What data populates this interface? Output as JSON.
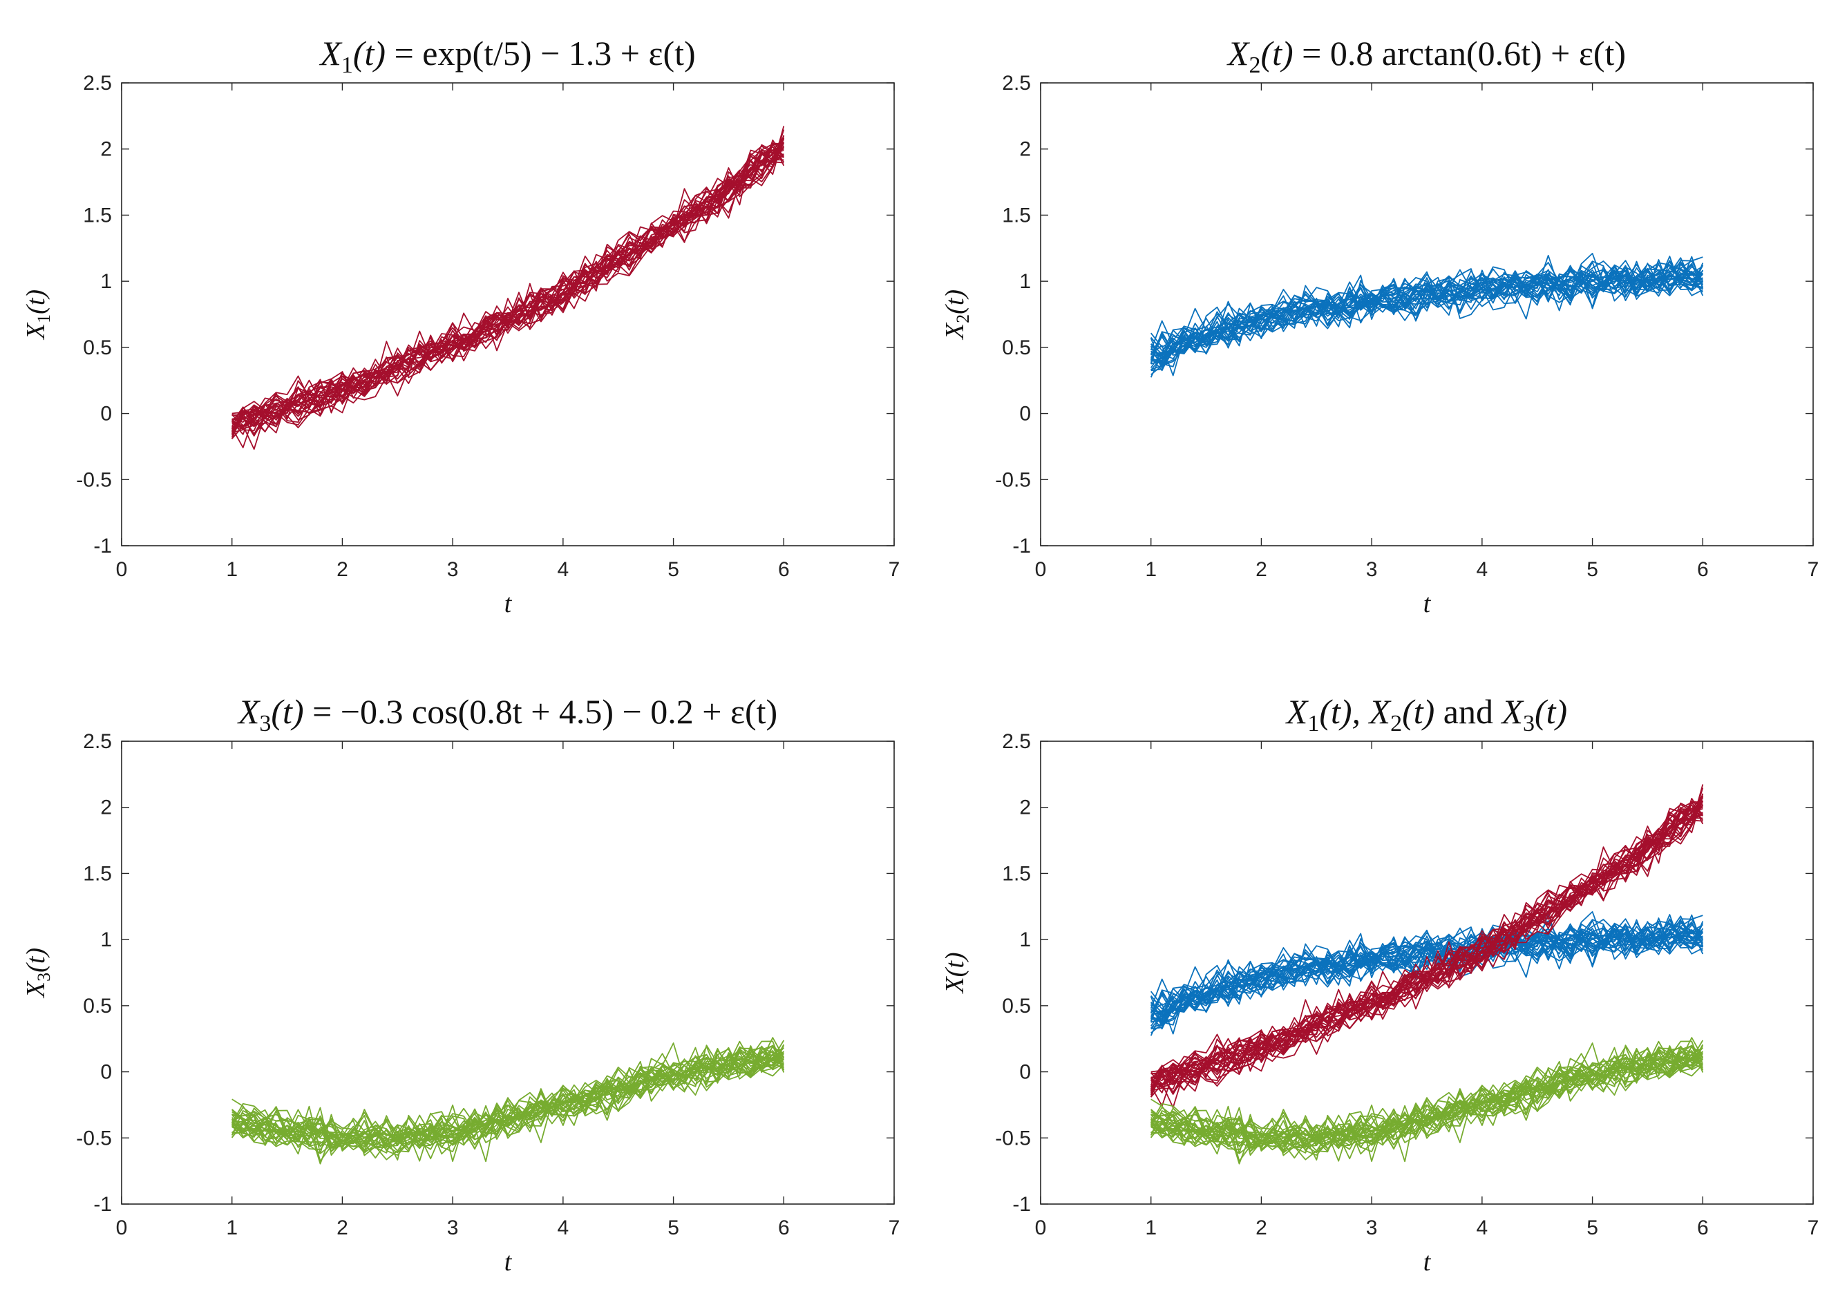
{
  "colors": {
    "X1": "#a50f2d",
    "X2": "#0b72bd",
    "X3": "#77ac30",
    "axes": "#262626",
    "background": "#ffffff"
  },
  "curves": {
    "samples": 30,
    "t_start": 1,
    "t_end": 6,
    "n_points": 51,
    "noise_sd": 0.07
  },
  "chart_data": [
    {
      "type": "line",
      "id": "X1",
      "title": "X1(t) = exp(t/5) − 1.3 + ε(t)",
      "title_runs": [
        {
          "text": "X",
          "it": true
        },
        {
          "text": "1",
          "sub": true
        },
        {
          "text": "(t)",
          "it": true
        },
        {
          "text": " = exp(t/5) − 1.3 + ε(t)",
          "it": false
        }
      ],
      "xlabel": "t",
      "ylabel": "X1(t)",
      "ylabel_runs": [
        {
          "text": "X",
          "it": true
        },
        {
          "text": "1",
          "sub": true
        },
        {
          "text": "(t)",
          "it": true
        }
      ],
      "xlim": [
        0,
        7
      ],
      "ylim": [
        -1,
        2.5
      ],
      "xticks": [
        "0",
        "1",
        "2",
        "3",
        "4",
        "5",
        "6",
        "7"
      ],
      "yticks": [
        "-1",
        "-0.5",
        "0",
        "0.5",
        "1",
        "1.5",
        "2",
        "2.5"
      ],
      "series": [
        {
          "name": "X1",
          "func": "exp"
        }
      ]
    },
    {
      "type": "line",
      "id": "X2",
      "title": "X2(t) = 0.8 arctan(0.6t) + ε(t)",
      "title_runs": [
        {
          "text": "X",
          "it": true
        },
        {
          "text": "2",
          "sub": true
        },
        {
          "text": "(t)",
          "it": true
        },
        {
          "text": " = 0.8 arctan(0.6t) + ε(t)",
          "it": false
        }
      ],
      "xlabel": "t",
      "ylabel": "X2(t)",
      "ylabel_runs": [
        {
          "text": "X",
          "it": true
        },
        {
          "text": "2",
          "sub": true
        },
        {
          "text": "(t)",
          "it": true
        }
      ],
      "xlim": [
        0,
        7
      ],
      "ylim": [
        -1,
        2.5
      ],
      "xticks": [
        "0",
        "1",
        "2",
        "3",
        "4",
        "5",
        "6",
        "7"
      ],
      "yticks": [
        "-1",
        "-0.5",
        "0",
        "0.5",
        "1",
        "1.5",
        "2",
        "2.5"
      ],
      "series": [
        {
          "name": "X2",
          "func": "atan"
        }
      ]
    },
    {
      "type": "line",
      "id": "X3",
      "title": "X3(t) = −0.3 cos(0.8t + 4.5) − 0.2 + ε(t)",
      "title_runs": [
        {
          "text": "X",
          "it": true
        },
        {
          "text": "3",
          "sub": true
        },
        {
          "text": "(t)",
          "it": true
        },
        {
          "text": " = −0.3 cos(0.8t + 4.5) − 0.2 + ε(t)",
          "it": false
        }
      ],
      "xlabel": "t",
      "ylabel": "X3(t)",
      "ylabel_runs": [
        {
          "text": "X",
          "it": true
        },
        {
          "text": "3",
          "sub": true
        },
        {
          "text": "(t)",
          "it": true
        }
      ],
      "xlim": [
        0,
        7
      ],
      "ylim": [
        -1,
        2.5
      ],
      "xticks": [
        "0",
        "1",
        "2",
        "3",
        "4",
        "5",
        "6",
        "7"
      ],
      "yticks": [
        "-1",
        "-0.5",
        "0",
        "0.5",
        "1",
        "1.5",
        "2",
        "2.5"
      ],
      "series": [
        {
          "name": "X3",
          "func": "cos"
        }
      ]
    },
    {
      "type": "line",
      "id": "ALL",
      "title": "X1(t), X2(t) and X3(t)",
      "title_runs": [
        {
          "text": "X",
          "it": true
        },
        {
          "text": "1",
          "sub": true
        },
        {
          "text": "(t), ",
          "it": true
        },
        {
          "text": "X",
          "it": true
        },
        {
          "text": "2",
          "sub": true
        },
        {
          "text": "(t)",
          "it": true
        },
        {
          "text": " and ",
          "it": false
        },
        {
          "text": "X",
          "it": true
        },
        {
          "text": "3",
          "sub": true
        },
        {
          "text": "(t)",
          "it": true
        }
      ],
      "xlabel": "t",
      "ylabel": "X(t)",
      "ylabel_runs": [
        {
          "text": "X(t)",
          "it": true
        }
      ],
      "xlim": [
        0,
        7
      ],
      "ylim": [
        -1,
        2.5
      ],
      "xticks": [
        "0",
        "1",
        "2",
        "3",
        "4",
        "5",
        "6",
        "7"
      ],
      "yticks": [
        "-1",
        "-0.5",
        "0",
        "0.5",
        "1",
        "1.5",
        "2",
        "2.5"
      ],
      "series": [
        {
          "name": "X2",
          "func": "atan"
        },
        {
          "name": "X1",
          "func": "exp"
        },
        {
          "name": "X3",
          "func": "cos"
        }
      ]
    }
  ]
}
